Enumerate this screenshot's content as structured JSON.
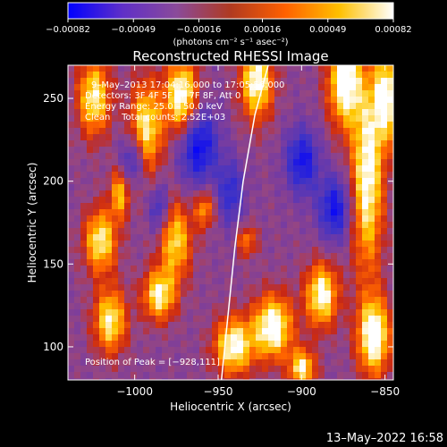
{
  "chart_data": {
    "type": "heatmap",
    "title": "Reconstructed RHESSI Image",
    "xlabel": "Heliocentric X (arcsec)",
    "ylabel": "Heliocentric Y (arcsec)",
    "xlim": [
      -1040,
      -845
    ],
    "ylim": [
      80,
      270
    ],
    "x_ticks": [
      -1000,
      -950,
      -900,
      -850
    ],
    "x_tick_labels": [
      "−1000",
      "−950",
      "−900",
      "−850"
    ],
    "y_ticks": [
      100,
      150,
      200,
      250
    ],
    "y_tick_labels": [
      "100",
      "150",
      "200",
      "250"
    ],
    "colorbar": {
      "min": -0.00082,
      "max": 0.00082,
      "ticks": [
        -0.00082,
        -0.00049,
        -0.00016,
        0.00016,
        0.00049,
        0.00082
      ],
      "tick_labels": [
        "−0.00082",
        "−0.00049",
        "−0.00016",
        "0.00016",
        "0.00049",
        "0.00082"
      ],
      "unit_label": "(photons cm⁻² s⁻¹ asec⁻²)",
      "colors": [
        "#0000ff",
        "#5f2fc8",
        "#8a4a9a",
        "#b03a20",
        "#ff6000",
        "#ffc000",
        "#ffffff"
      ]
    },
    "annotations": {
      "time_range": "9–May–2013 17:04:16.000 to 17:05:56.000",
      "detectors": "Detectors: 3F 4F 5F 6F 7F 8F, Att 0",
      "energy_range": "Energy Range: 25.0 – 50.0 keV",
      "clean_counts": "Clean    Total counts: 2.52E+03",
      "peak_position": "Position of Peak = [−928,111]"
    },
    "limb_curve": [
      [
        -948,
        80
      ],
      [
        -944,
        120
      ],
      [
        -940,
        160
      ],
      [
        -935,
        200
      ],
      [
        -928,
        240
      ],
      [
        -920,
        270
      ]
    ]
  },
  "footer": {
    "timestamp": "13–May–2022 16:58"
  }
}
